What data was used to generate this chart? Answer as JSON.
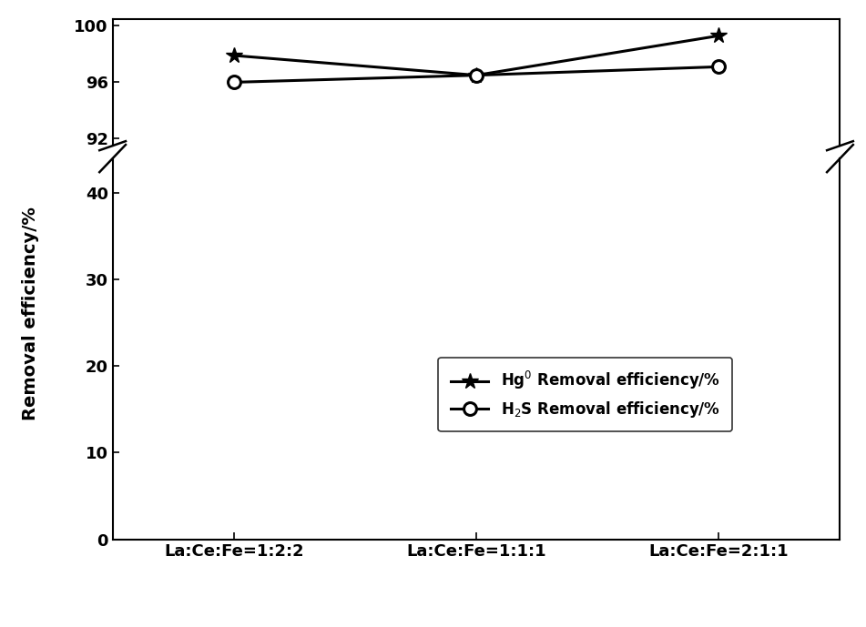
{
  "x_labels": [
    "La:Ce:Fe=1:2:2",
    "La:Ce:Fe=1:1:1",
    "La:Ce:Fe=2:1:1"
  ],
  "x_positions": [
    0,
    1,
    2
  ],
  "hg_values": [
    97.9,
    96.5,
    99.3
  ],
  "h2s_values": [
    96.0,
    96.5,
    97.1
  ],
  "ylabel": "Removal efficiency/%",
  "legend_hg": "Hg$^0$ Removal efficiency/%",
  "legend_h2s": "H$_2$S Removal efficiency/%",
  "lower_ylim": [
    0,
    44
  ],
  "upper_ylim": [
    91.5,
    100.5
  ],
  "lower_yticks": [
    0,
    10,
    20,
    30,
    40
  ],
  "upper_yticks": [
    92,
    96,
    100
  ],
  "line_color": "#000000",
  "linewidth": 2.2,
  "markersize": 10
}
